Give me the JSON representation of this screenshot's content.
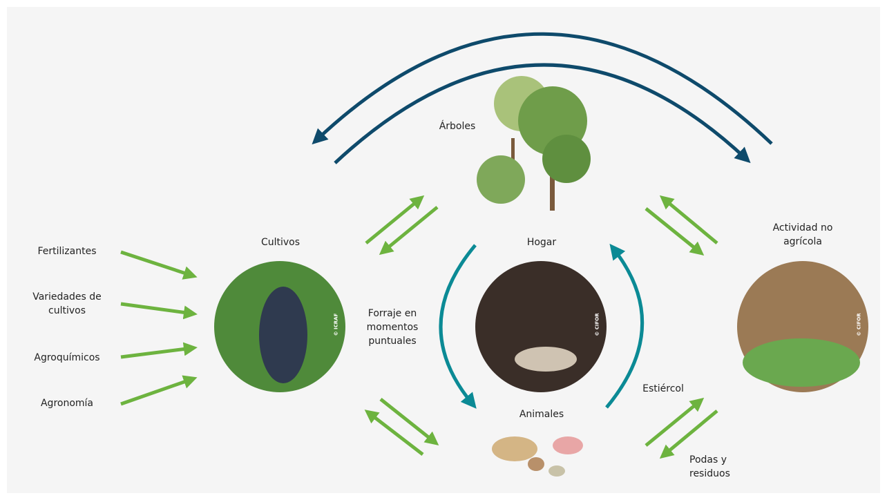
{
  "inputs": [
    "Fertilizantes",
    "Variedades de cultivos",
    "Agroquímicos",
    "Agronomía"
  ],
  "nodes": {
    "arboles": {
      "label": "Árboles"
    },
    "cultivos": {
      "label": "Cultivos",
      "credit": "© ICRAF"
    },
    "hogar": {
      "label": "Hogar",
      "credit": "© CIFOR"
    },
    "animales": {
      "label": "Animales"
    },
    "actividad": {
      "label": "Actividad no agrícola",
      "credit": "© CIFOR"
    }
  },
  "flows": {
    "forraje": "Forraje en momentos puntuales",
    "estiercol": "Estiércol",
    "podas": "Podas y residuos"
  }
}
